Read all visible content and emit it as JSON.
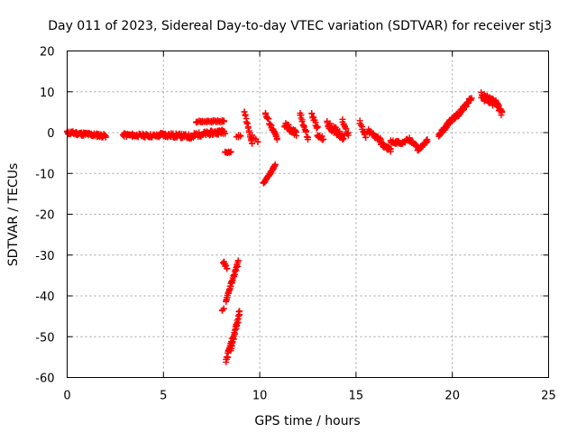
{
  "chart_data": {
    "type": "scatter",
    "title": "Day 011 of 2023, Sidereal Day-to-day VTEC variation (SDTVAR) for receiver stj3",
    "xlabel": "GPS time / hours",
    "ylabel": "SDTVAR / TECUs",
    "xlim": [
      0,
      25
    ],
    "ylim": [
      -60,
      20
    ],
    "xticks": [
      0,
      5,
      10,
      15,
      20,
      25
    ],
    "yticks": [
      -60,
      -50,
      -40,
      -30,
      -20,
      -10,
      0,
      10,
      20
    ],
    "grid": true,
    "marker": "plus",
    "color": "#ff0000",
    "series": [
      {
        "name": "SDTVAR",
        "segments": [
          {
            "x0": 0.0,
            "x1": 2.0,
            "y0": 0.0,
            "y1": -0.8,
            "jitter": 0.9,
            "step": 0.05
          },
          {
            "x0": 2.9,
            "x1": 4.8,
            "y0": -0.6,
            "y1": -0.8,
            "jitter": 0.9,
            "step": 0.06
          },
          {
            "x0": 4.8,
            "x1": 6.6,
            "y0": -0.5,
            "y1": -1.0,
            "jitter": 1.1,
            "step": 0.05
          },
          {
            "x0": 6.6,
            "x1": 8.2,
            "y0": -0.6,
            "y1": 0.3,
            "jitter": 1.1,
            "step": 0.05
          },
          {
            "x0": 6.7,
            "x1": 8.2,
            "y0": 2.7,
            "y1": 2.8,
            "jitter": 0.5,
            "step": 0.08
          },
          {
            "x0": 8.2,
            "x1": 8.5,
            "y0": -4.8,
            "y1": -4.8,
            "jitter": 0.3,
            "step": 0.06
          },
          {
            "x0": 8.1,
            "x1": 8.3,
            "y0": -31.5,
            "y1": -33.5,
            "jitter": 1.0,
            "step": 0.05
          },
          {
            "x0": 8.25,
            "x1": 8.9,
            "y0": -41.0,
            "y1": -31.5,
            "jitter": 1.0,
            "step": 0.035
          },
          {
            "x0": 8.25,
            "x1": 8.55,
            "y0": -56.0,
            "y1": -51.0,
            "jitter": 1.2,
            "step": 0.03
          },
          {
            "x0": 8.5,
            "x1": 8.95,
            "y0": -53.0,
            "y1": -44.0,
            "jitter": 1.5,
            "step": 0.03
          },
          {
            "x0": 8.05,
            "x1": 8.2,
            "y0": -43.5,
            "y1": -43.0,
            "jitter": 0.3,
            "step": 0.08
          },
          {
            "x0": 8.8,
            "x1": 9.0,
            "y0": -1.0,
            "y1": -0.8,
            "jitter": 0.6,
            "step": 0.1
          },
          {
            "x0": 9.2,
            "x1": 9.6,
            "y0": 5.0,
            "y1": -2.5,
            "jitter": 1.0,
            "step": 0.05
          },
          {
            "x0": 9.6,
            "x1": 9.9,
            "y0": -1.0,
            "y1": -2.0,
            "jitter": 0.8,
            "step": 0.1
          },
          {
            "x0": 10.3,
            "x1": 10.9,
            "y0": 4.5,
            "y1": -1.5,
            "jitter": 1.0,
            "step": 0.05
          },
          {
            "x0": 10.2,
            "x1": 10.8,
            "y0": -12.5,
            "y1": -8.0,
            "jitter": 0.5,
            "step": 0.04
          },
          {
            "x0": 11.3,
            "x1": 11.9,
            "y0": 2.0,
            "y1": -0.5,
            "jitter": 1.8,
            "step": 0.05
          },
          {
            "x0": 12.1,
            "x1": 12.5,
            "y0": 4.5,
            "y1": -1.5,
            "jitter": 1.2,
            "step": 0.05
          },
          {
            "x0": 12.7,
            "x1": 13.0,
            "y0": 4.5,
            "y1": 1.0,
            "jitter": 1.0,
            "step": 0.05
          },
          {
            "x0": 13.0,
            "x1": 13.3,
            "y0": -0.8,
            "y1": -1.5,
            "jitter": 1.0,
            "step": 0.06
          },
          {
            "x0": 13.5,
            "x1": 14.4,
            "y0": 2.0,
            "y1": -1.2,
            "jitter": 1.8,
            "step": 0.05
          },
          {
            "x0": 14.3,
            "x1": 14.6,
            "y0": 3.0,
            "y1": -0.5,
            "jitter": 1.0,
            "step": 0.06
          },
          {
            "x0": 15.2,
            "x1": 15.5,
            "y0": 2.5,
            "y1": -1.0,
            "jitter": 1.0,
            "step": 0.06
          },
          {
            "x0": 15.6,
            "x1": 16.3,
            "y0": 0.5,
            "y1": -2.0,
            "jitter": 1.0,
            "step": 0.05
          },
          {
            "x0": 16.3,
            "x1": 16.8,
            "y0": -2.8,
            "y1": -4.2,
            "jitter": 0.9,
            "step": 0.05
          },
          {
            "x0": 16.8,
            "x1": 17.3,
            "y0": -2.2,
            "y1": -2.5,
            "jitter": 0.7,
            "step": 0.06
          },
          {
            "x0": 17.3,
            "x1": 17.8,
            "y0": -2.8,
            "y1": -1.5,
            "jitter": 0.7,
            "step": 0.06
          },
          {
            "x0": 17.8,
            "x1": 18.2,
            "y0": -2.0,
            "y1": -3.5,
            "jitter": 0.8,
            "step": 0.05
          },
          {
            "x0": 18.2,
            "x1": 18.7,
            "y0": -4.5,
            "y1": -2.0,
            "jitter": 0.9,
            "step": 0.05
          },
          {
            "x0": 19.3,
            "x1": 19.7,
            "y0": -0.5,
            "y1": 1.5,
            "jitter": 0.9,
            "step": 0.05
          },
          {
            "x0": 19.7,
            "x1": 20.4,
            "y0": 2.0,
            "y1": 4.8,
            "jitter": 1.0,
            "step": 0.04
          },
          {
            "x0": 20.4,
            "x1": 21.0,
            "y0": 5.0,
            "y1": 8.5,
            "jitter": 1.0,
            "step": 0.04
          },
          {
            "x0": 21.5,
            "x1": 22.1,
            "y0": 9.0,
            "y1": 7.5,
            "jitter": 1.8,
            "step": 0.04
          },
          {
            "x0": 22.1,
            "x1": 22.6,
            "y0": 8.5,
            "y1": 4.5,
            "jitter": 1.5,
            "step": 0.04
          }
        ]
      }
    ]
  }
}
